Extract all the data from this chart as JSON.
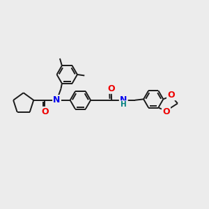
{
  "bg_color": "#ececec",
  "atom_colors": {
    "N": "#0000ee",
    "O": "#ee0000",
    "H": "#008080",
    "C": "#1a1a1a"
  },
  "bond_color": "#1a1a1a",
  "bond_width": 1.4,
  "font_size": 8.5
}
